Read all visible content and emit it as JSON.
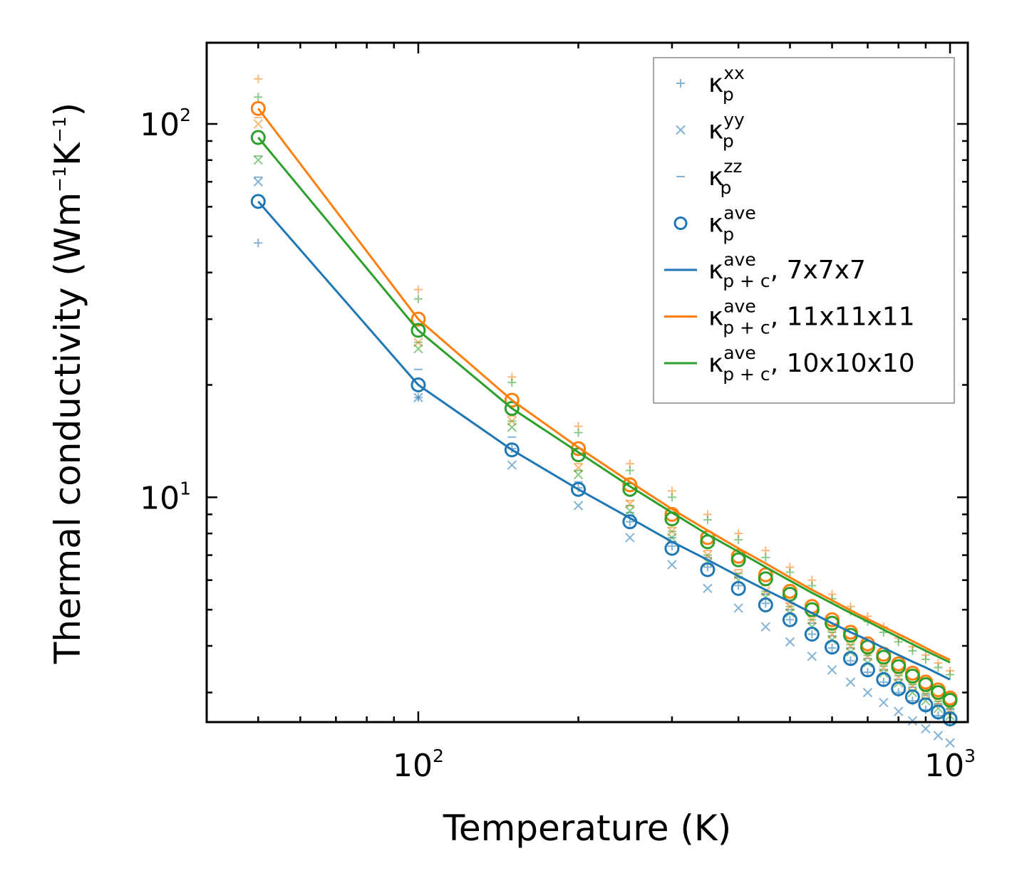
{
  "chart_data": {
    "type": "scatter",
    "xscale": "log",
    "yscale": "log",
    "xlabel": "Temperature (K)",
    "ylabel_parts": [
      "Thermal conductivity (Wm",
      "−1",
      "K",
      "−1",
      ")"
    ],
    "xlim": [
      40,
      1080
    ],
    "ylim": [
      2.5,
      165
    ],
    "x_ticks": [
      {
        "value": 100,
        "base": "10",
        "exp": "2"
      },
      {
        "value": 1000,
        "base": "10",
        "exp": "3"
      }
    ],
    "y_ticks": [
      {
        "value": 10,
        "base": "10",
        "exp": "1"
      },
      {
        "value": 100,
        "base": "10",
        "exp": "2"
      }
    ],
    "temperatures": [
      50,
      100,
      150,
      200,
      250,
      300,
      350,
      400,
      450,
      500,
      550,
      600,
      650,
      700,
      750,
      800,
      850,
      900,
      950,
      1000
    ],
    "colors": {
      "blue": "#1f77b4",
      "orange": "#ff7f0e",
      "green": "#2ca02c"
    },
    "series": [
      {
        "name": "7x7x7",
        "color": "#1f77b4",
        "kxx": [
          48,
          18.5,
          13.5,
          10.6,
          8.6,
          7.4,
          6.5,
          5.8,
          5.2,
          4.7,
          4.3,
          3.95,
          3.65,
          3.4,
          3.2,
          3.0,
          2.85,
          2.7,
          2.6,
          2.5
        ],
        "kyy": [
          70,
          18.5,
          12.2,
          9.5,
          7.8,
          6.6,
          5.7,
          5.05,
          4.5,
          4.1,
          3.75,
          3.45,
          3.2,
          3.0,
          2.82,
          2.67,
          2.52,
          2.4,
          2.3,
          2.2
        ],
        "kzz": [
          72,
          22,
          14.5,
          11.0,
          9.1,
          7.8,
          6.9,
          6.1,
          5.5,
          5.0,
          4.6,
          4.25,
          3.95,
          3.7,
          3.45,
          3.25,
          3.1,
          2.95,
          2.8,
          2.7
        ],
        "kave": [
          62,
          20,
          13.4,
          10.5,
          8.6,
          7.3,
          6.4,
          5.7,
          5.15,
          4.7,
          4.3,
          3.97,
          3.7,
          3.45,
          3.25,
          3.07,
          2.92,
          2.78,
          2.66,
          2.55
        ],
        "kpc": [
          62,
          20,
          13.4,
          10.5,
          8.8,
          7.6,
          6.8,
          6.15,
          5.65,
          5.25,
          4.9,
          4.6,
          4.35,
          4.15,
          3.95,
          3.78,
          3.63,
          3.5,
          3.37,
          3.25
        ]
      },
      {
        "name": "11x11x11",
        "color": "#ff7f0e",
        "kxx": [
          132,
          36,
          21,
          15.5,
          12.3,
          10.4,
          9.0,
          8.0,
          7.2,
          6.5,
          6.0,
          5.5,
          5.1,
          4.8,
          4.5,
          4.2,
          3.98,
          3.78,
          3.6,
          3.43
        ],
        "kyy": [
          100,
          26,
          16,
          12.0,
          9.6,
          8.1,
          7.0,
          6.2,
          5.6,
          5.1,
          4.7,
          4.3,
          4.0,
          3.75,
          3.5,
          3.3,
          3.12,
          2.96,
          2.82,
          2.7
        ],
        "kzz": [
          104,
          27,
          16.5,
          12.3,
          9.8,
          8.3,
          7.2,
          6.4,
          5.8,
          5.2,
          4.8,
          4.45,
          4.12,
          3.85,
          3.6,
          3.4,
          3.2,
          3.05,
          2.9,
          2.78
        ],
        "kave": [
          110,
          30,
          18.2,
          13.5,
          10.8,
          9.0,
          7.8,
          6.95,
          6.2,
          5.6,
          5.1,
          4.7,
          4.35,
          4.05,
          3.8,
          3.58,
          3.38,
          3.2,
          3.05,
          2.9
        ],
        "kpc": [
          110,
          30,
          18.2,
          13.6,
          11.0,
          9.3,
          8.15,
          7.3,
          6.65,
          6.1,
          5.65,
          5.3,
          4.98,
          4.72,
          4.5,
          4.3,
          4.12,
          3.95,
          3.8,
          3.67
        ]
      },
      {
        "name": "10x10x10",
        "color": "#2ca02c",
        "kxx": [
          118,
          34,
          20.3,
          14.9,
          11.8,
          10.0,
          8.7,
          7.7,
          6.9,
          6.3,
          5.8,
          5.35,
          4.95,
          4.65,
          4.35,
          4.1,
          3.88,
          3.68,
          3.5,
          3.35
        ],
        "kyy": [
          80,
          25,
          15.4,
          11.5,
          9.2,
          7.8,
          6.7,
          6.0,
          5.4,
          4.9,
          4.5,
          4.15,
          3.85,
          3.6,
          3.38,
          3.18,
          3.0,
          2.85,
          2.72,
          2.6
        ],
        "kzz": [
          82,
          26,
          16.0,
          11.8,
          9.5,
          8.1,
          7.0,
          6.25,
          5.6,
          5.1,
          4.7,
          4.35,
          4.03,
          3.77,
          3.53,
          3.33,
          3.15,
          2.98,
          2.84,
          2.72
        ],
        "kave": [
          92,
          28,
          17.3,
          13.0,
          10.5,
          8.75,
          7.6,
          6.8,
          6.05,
          5.5,
          5.0,
          4.6,
          4.27,
          3.97,
          3.73,
          3.52,
          3.32,
          3.15,
          3.0,
          2.86
        ],
        "kpc": [
          92,
          28,
          17.3,
          13.2,
          10.7,
          9.1,
          7.95,
          7.15,
          6.5,
          5.98,
          5.55,
          5.2,
          4.9,
          4.65,
          4.42,
          4.22,
          4.04,
          3.88,
          3.74,
          3.61
        ]
      }
    ],
    "legend": {
      "position": "top-right",
      "entries": [
        {
          "symbol": "plus",
          "color": "#1f77b4",
          "base": "κ",
          "sub": "p",
          "sup": "xx",
          "suffix": ""
        },
        {
          "symbol": "x",
          "color": "#1f77b4",
          "base": "κ",
          "sub": "p",
          "sup": "yy",
          "suffix": ""
        },
        {
          "symbol": "dash",
          "color": "#1f77b4",
          "base": "κ",
          "sub": "p",
          "sup": "zz",
          "suffix": ""
        },
        {
          "symbol": "circle",
          "color": "#1f77b4",
          "base": "κ",
          "sub": "p",
          "sup": "ave",
          "suffix": ""
        },
        {
          "symbol": "line",
          "color": "#1f77b4",
          "base": "κ",
          "sub": "p + c",
          "sup": "ave",
          "suffix": ", 7x7x7"
        },
        {
          "symbol": "line",
          "color": "#ff7f0e",
          "base": "κ",
          "sub": "p + c",
          "sup": "ave",
          "suffix": ", 11x11x11"
        },
        {
          "symbol": "line",
          "color": "#2ca02c",
          "base": "κ",
          "sub": "p + c",
          "sup": "ave",
          "suffix": ", 10x10x10"
        }
      ]
    }
  }
}
